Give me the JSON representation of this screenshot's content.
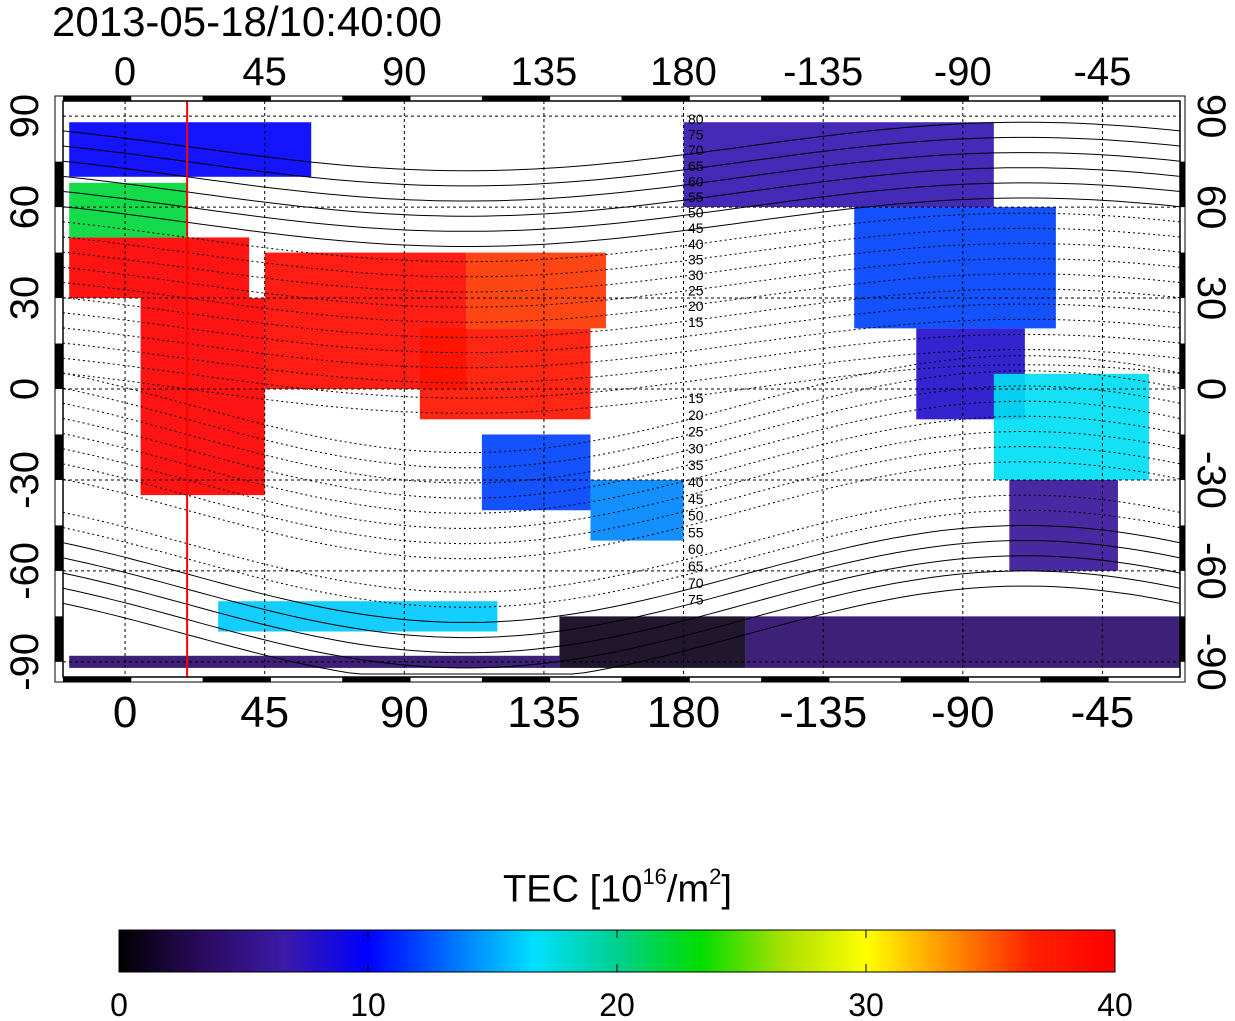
{
  "title": "2013-05-18/10:40:00",
  "colorbar": {
    "label_prefix": "TEC  [10",
    "label_exp1": "16",
    "label_mid": "/m",
    "label_exp2": "2",
    "label_suffix": "]",
    "ticks": [
      "0",
      "10",
      "20",
      "30",
      "40"
    ],
    "range": [
      0,
      40
    ],
    "colors": [
      "#000000",
      "#2a0a5e",
      "#3b1aa8",
      "#0000ff",
      "#0070ff",
      "#00e0ff",
      "#00d090",
      "#00dd00",
      "#a8e000",
      "#ffff00",
      "#ff9000",
      "#ff2000",
      "#ff0000"
    ]
  },
  "chart_data": {
    "type": "heatmap",
    "title": "2013-05-18/10:40:00",
    "x_ticks_top": [
      "0",
      "45",
      "90",
      "135",
      "180",
      "-135",
      "-90",
      "-45"
    ],
    "x_ticks_bottom": [
      "0",
      "45",
      "90",
      "135",
      "180",
      "-135",
      "-90",
      "-45"
    ],
    "y_ticks": [
      "90",
      "60",
      "30",
      "0",
      "-30",
      "-60",
      "-90"
    ],
    "xlim": [
      -20,
      340
    ],
    "ylim": [
      -95,
      95
    ],
    "grid": true,
    "marker_longitude": 20,
    "contour_labels_north": [
      "80",
      "75",
      "70",
      "65",
      "60",
      "55",
      "50",
      "45",
      "40",
      "35",
      "30",
      "25",
      "20",
      "15"
    ],
    "contour_labels_south": [
      "15",
      "20",
      "25",
      "30",
      "35",
      "40",
      "45",
      "50",
      "55",
      "60",
      "65",
      "70",
      "75"
    ],
    "tec_regions": [
      {
        "lon": [
          -18,
          40
        ],
        "lat": [
          30,
          50
        ],
        "tec": 40
      },
      {
        "lon": [
          -18,
          20
        ],
        "lat": [
          50,
          68
        ],
        "tec": 22
      },
      {
        "lon": [
          -18,
          60
        ],
        "lat": [
          70,
          88
        ],
        "tec": 10
      },
      {
        "lon": [
          5,
          45
        ],
        "lat": [
          -35,
          30
        ],
        "tec": 40
      },
      {
        "lon": [
          45,
          110
        ],
        "lat": [
          0,
          45
        ],
        "tec": 39
      },
      {
        "lon": [
          95,
          150
        ],
        "lat": [
          -10,
          20
        ],
        "tec": 38
      },
      {
        "lon": [
          110,
          155
        ],
        "lat": [
          20,
          45
        ],
        "tec": 36
      },
      {
        "lon": [
          115,
          150
        ],
        "lat": [
          -40,
          -15
        ],
        "tec": 12
      },
      {
        "lon": [
          150,
          180
        ],
        "lat": [
          -50,
          -30
        ],
        "tec": 14
      },
      {
        "lon": [
          180,
          280
        ],
        "lat": [
          60,
          88
        ],
        "tec": 7
      },
      {
        "lon": [
          235,
          300
        ],
        "lat": [
          20,
          60
        ],
        "tec": 12
      },
      {
        "lon": [
          255,
          290
        ],
        "lat": [
          -10,
          20
        ],
        "tec": 8
      },
      {
        "lon": [
          280,
          330
        ],
        "lat": [
          -30,
          5
        ],
        "tec": 17
      },
      {
        "lon": [
          285,
          320
        ],
        "lat": [
          -60,
          -30
        ],
        "tec": 6
      },
      {
        "lon": [
          140,
          200
        ],
        "lat": [
          -92,
          -75
        ],
        "tec": 1
      },
      {
        "lon": [
          200,
          340
        ],
        "lat": [
          -92,
          -75
        ],
        "tec": 4
      },
      {
        "lon": [
          -18,
          140
        ],
        "lat": [
          -92,
          -88
        ],
        "tec": 4
      },
      {
        "lon": [
          30,
          120
        ],
        "lat": [
          -80,
          -70
        ],
        "tec": 16
      }
    ]
  }
}
